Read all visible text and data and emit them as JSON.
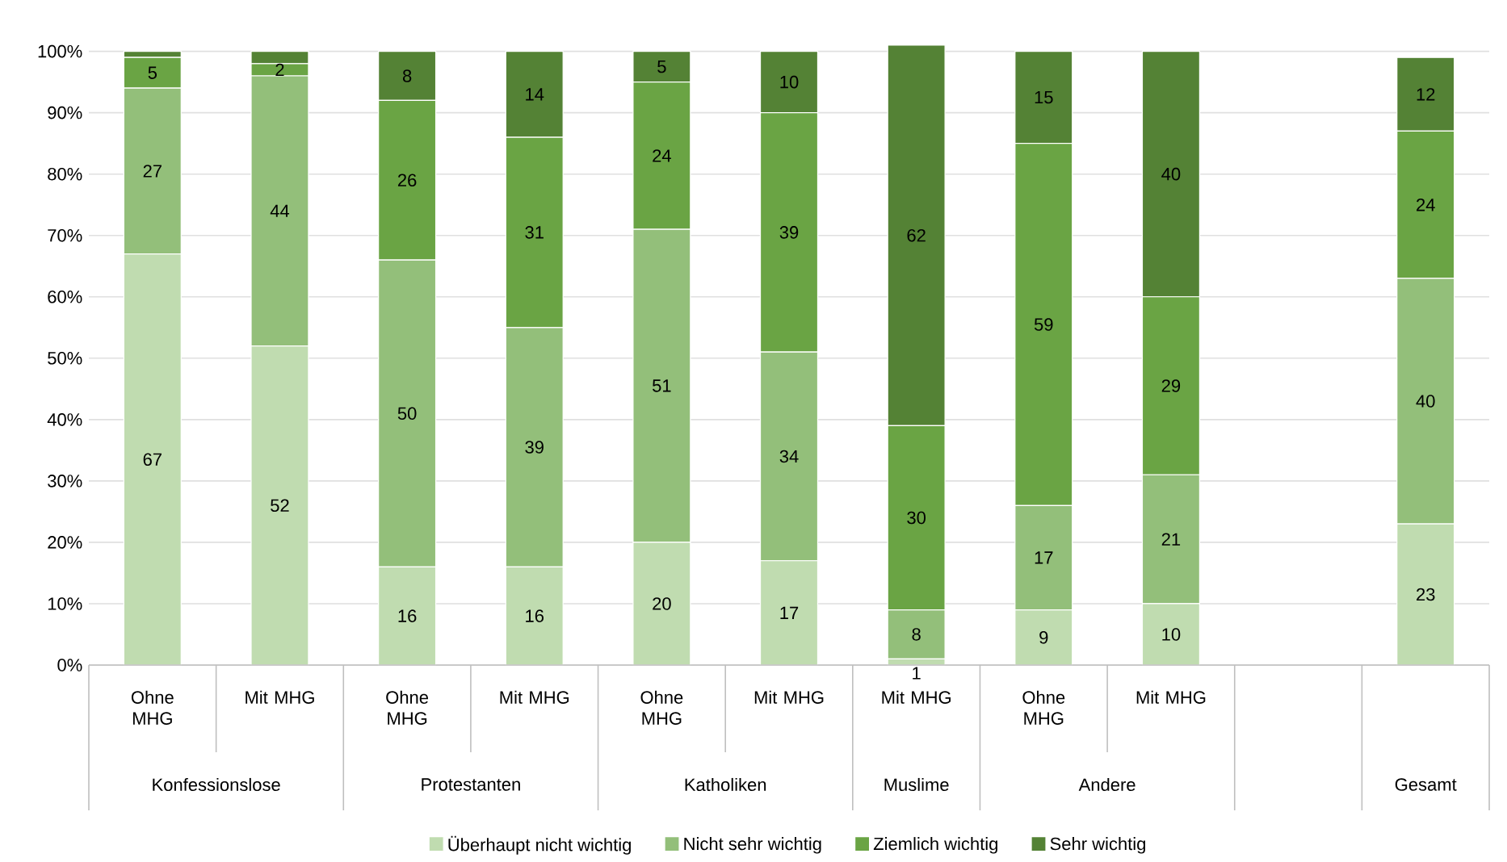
{
  "chart_data": {
    "type": "bar",
    "stacked": true,
    "categories": [
      "Ohne MHG",
      "Mit MHG",
      "Ohne MHG",
      "Mit MHG",
      "Ohne MHG",
      "Mit MHG",
      "Mit MHG",
      "Ohne MHG",
      "Mit MHG",
      null,
      null
    ],
    "series": [
      {
        "name": "Überhaupt nicht wichtig",
        "color": "#c0dcb0",
        "values": [
          67,
          52,
          16,
          16,
          20,
          17,
          1,
          9,
          10,
          null,
          23
        ],
        "value_labels": [
          "67",
          "52",
          "16",
          "16",
          "20",
          "17",
          "1",
          "9",
          "10",
          null,
          "23"
        ]
      },
      {
        "name": "Nicht sehr wichtig",
        "color": "#93bf7a",
        "values": [
          27,
          44,
          50,
          39,
          51,
          34,
          8,
          17,
          21,
          null,
          40
        ],
        "value_labels": [
          "27",
          "44",
          "50",
          "39",
          "51",
          "34",
          "8",
          "17",
          "21",
          null,
          "40"
        ]
      },
      {
        "name": "Ziemlich wichtig",
        "color": "#6aa444",
        "values": [
          5,
          2,
          26,
          31,
          24,
          39,
          30,
          59,
          29,
          null,
          24
        ],
        "value_labels": [
          "5",
          "2",
          "26",
          "31",
          "24",
          "39",
          "30",
          "59",
          "29",
          null,
          "24"
        ]
      },
      {
        "name": "Sehr wichtig",
        "color": "#548235",
        "values": [
          1,
          2,
          8,
          14,
          5,
          10,
          62,
          15,
          40,
          null,
          12
        ],
        "value_labels": [
          null,
          null,
          "8",
          "14",
          "5",
          "10",
          "62",
          "15",
          "40",
          null,
          "12"
        ]
      }
    ],
    "ylim": [
      0,
      101
    ],
    "yticks": [
      {
        "value": 0,
        "label": "0%"
      },
      {
        "value": 10,
        "label": "10%"
      },
      {
        "value": 20,
        "label": "20%"
      },
      {
        "value": 30,
        "label": "30%"
      },
      {
        "value": 40,
        "label": "40%"
      },
      {
        "value": 50,
        "label": "50%"
      },
      {
        "value": 60,
        "label": "60%"
      },
      {
        "value": 70,
        "label": "70%"
      },
      {
        "value": 80,
        "label": "80%"
      },
      {
        "value": 90,
        "label": "90%"
      },
      {
        "value": 100,
        "label": "100%"
      }
    ],
    "grid": "y",
    "legend": "bottom",
    "annotations": [
      "Konfessionslose",
      "Protestanten",
      "Katholiken",
      "Muslime",
      "Andere",
      "Gesamt"
    ]
  }
}
